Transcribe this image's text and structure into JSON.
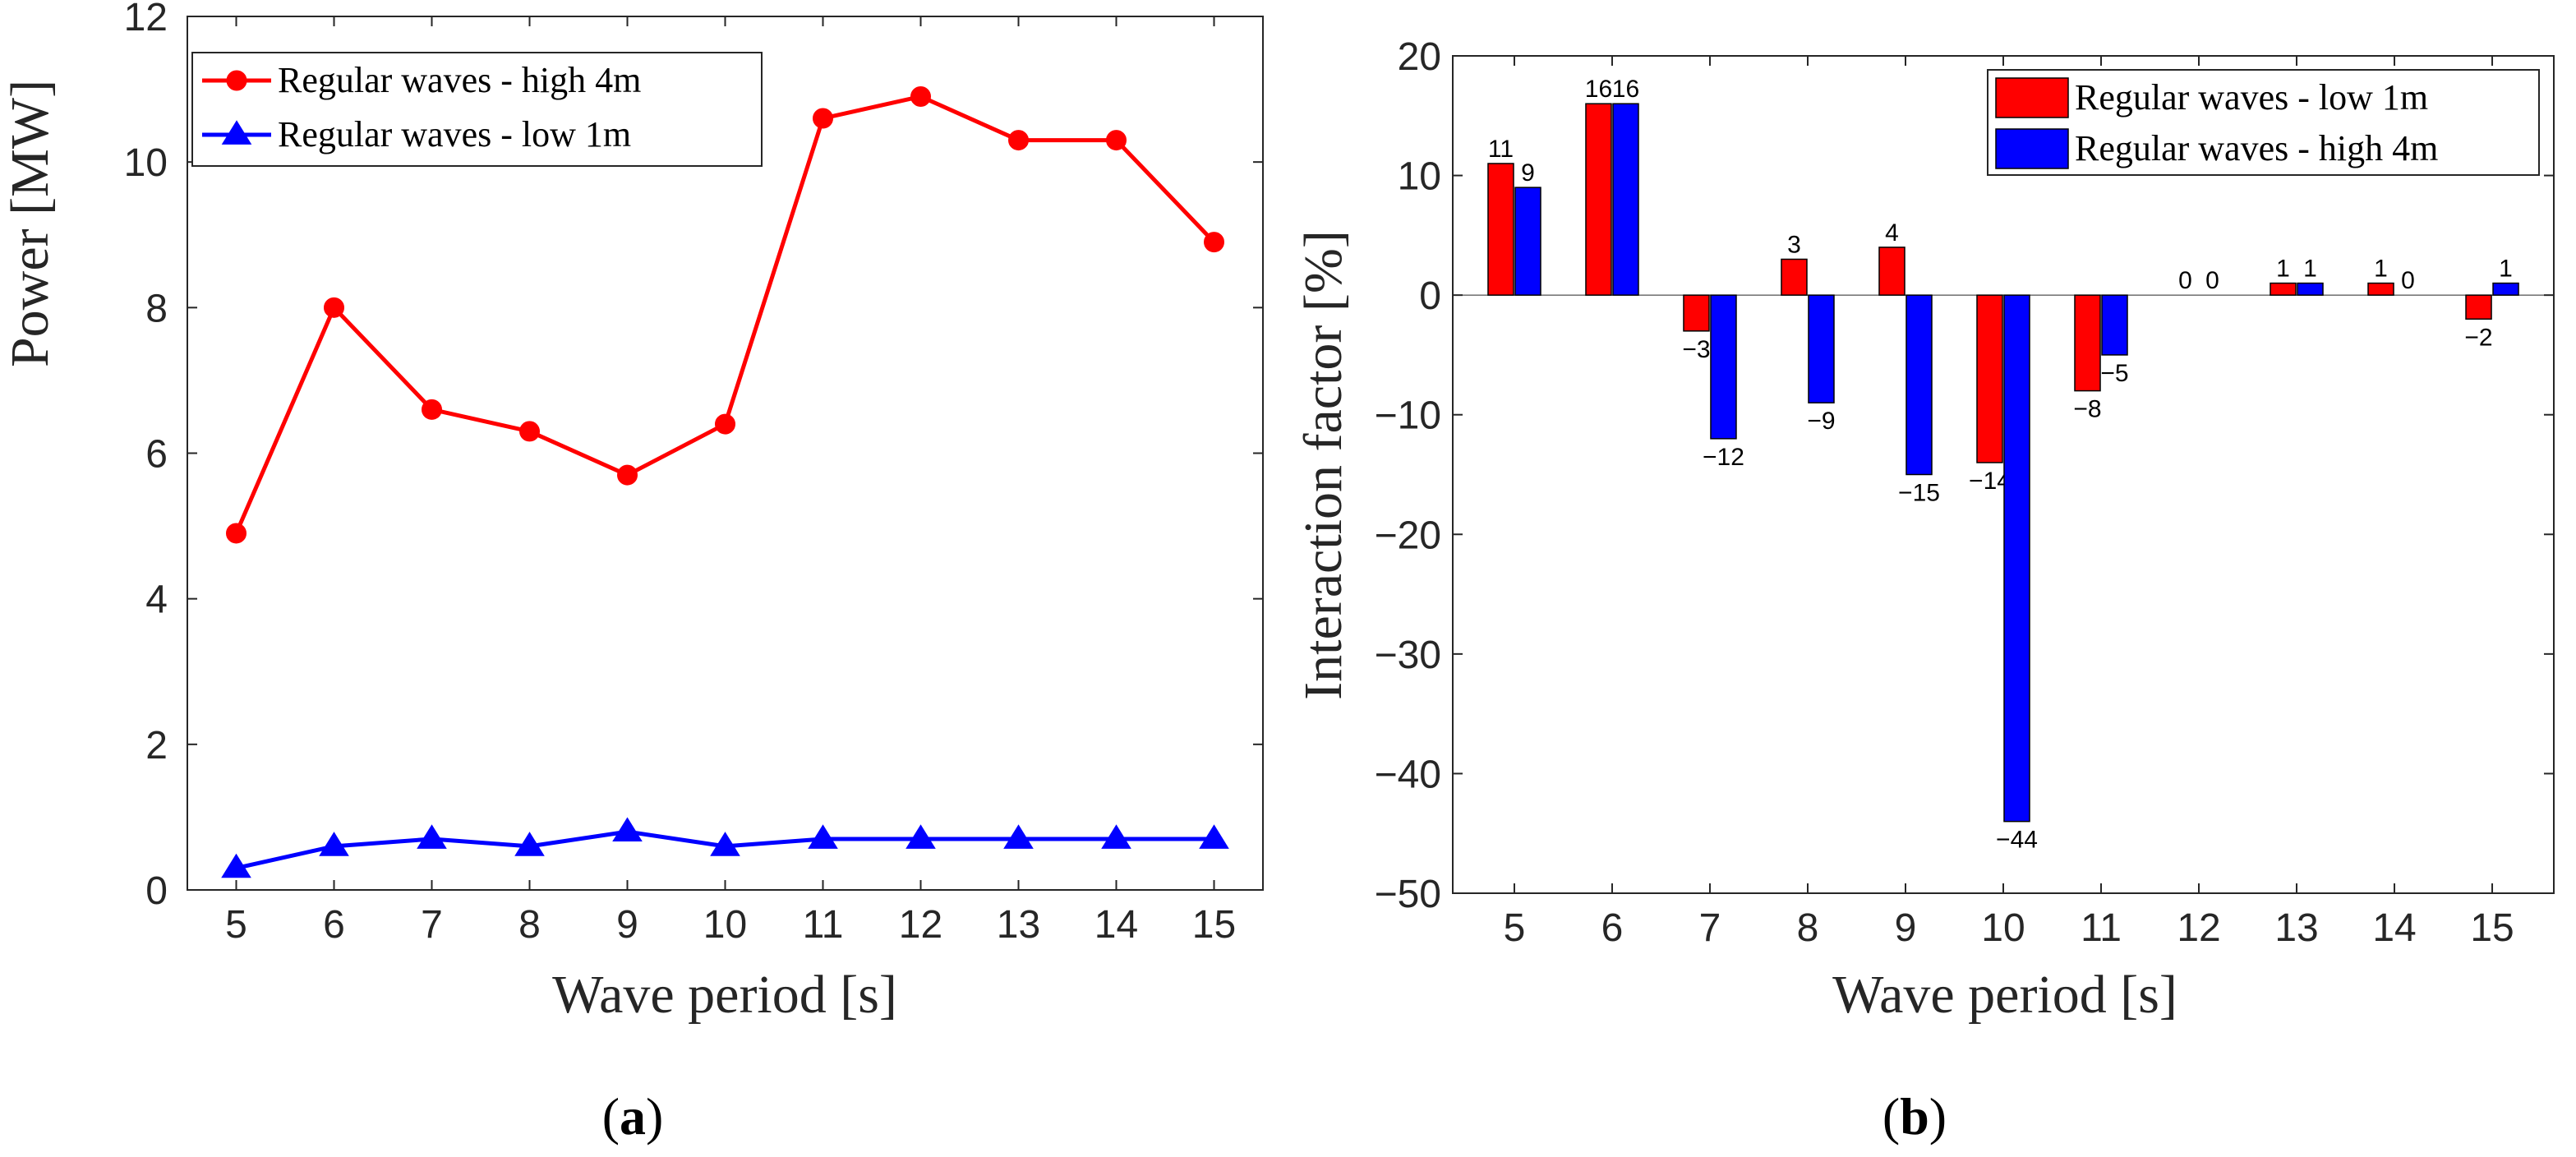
{
  "colors": {
    "red": "#ff0000",
    "blue": "#0000ff",
    "axis": "#262626"
  },
  "chart_data": [
    {
      "id": "a",
      "type": "line",
      "subfigure_label": "a",
      "xlabel": "Wave period [s]",
      "ylabel": "Power [MW]",
      "xlim": [
        4.5,
        15.5
      ],
      "ylim": [
        0,
        12
      ],
      "xticks": [
        5,
        6,
        7,
        8,
        9,
        10,
        11,
        12,
        13,
        14,
        15
      ],
      "yticks": [
        0,
        2,
        4,
        6,
        8,
        10,
        12
      ],
      "x": [
        5,
        6,
        7,
        8,
        9,
        10,
        11,
        12,
        13,
        14,
        15
      ],
      "legend_position": "top-left",
      "series": [
        {
          "name": "Regular waves - high 4m",
          "color": "#ff0000",
          "marker": "circle",
          "values": [
            4.9,
            8.0,
            6.6,
            6.3,
            5.7,
            6.4,
            10.6,
            10.9,
            10.3,
            10.3,
            8.9
          ]
        },
        {
          "name": "Regular waves - low 1m",
          "color": "#0000ff",
          "marker": "triangle",
          "values": [
            0.3,
            0.6,
            0.7,
            0.6,
            0.8,
            0.6,
            0.7,
            0.7,
            0.7,
            0.7,
            0.7
          ]
        }
      ]
    },
    {
      "id": "b",
      "type": "bar",
      "subfigure_label": "b",
      "xlabel": "Wave period [s]",
      "ylabel": "Interaction factor [%]",
      "ylim": [
        -50,
        20
      ],
      "yticks": [
        -50,
        -40,
        -30,
        -20,
        -10,
        0,
        10,
        20
      ],
      "categories": [
        "5",
        "6",
        "7",
        "8",
        "9",
        "10",
        "11",
        "12",
        "13",
        "14",
        "15"
      ],
      "legend_position": "top-right",
      "series": [
        {
          "name": "Regular waves - low 1m",
          "color": "#ff0000",
          "values": [
            11,
            16,
            -3,
            3,
            4,
            -14,
            -8,
            0,
            1,
            1,
            -2
          ]
        },
        {
          "name": "Regular waves - high 4m",
          "color": "#0000ff",
          "values": [
            9,
            16,
            -12,
            -9,
            -15,
            -44,
            -5,
            0,
            1,
            0,
            1
          ]
        }
      ]
    }
  ]
}
